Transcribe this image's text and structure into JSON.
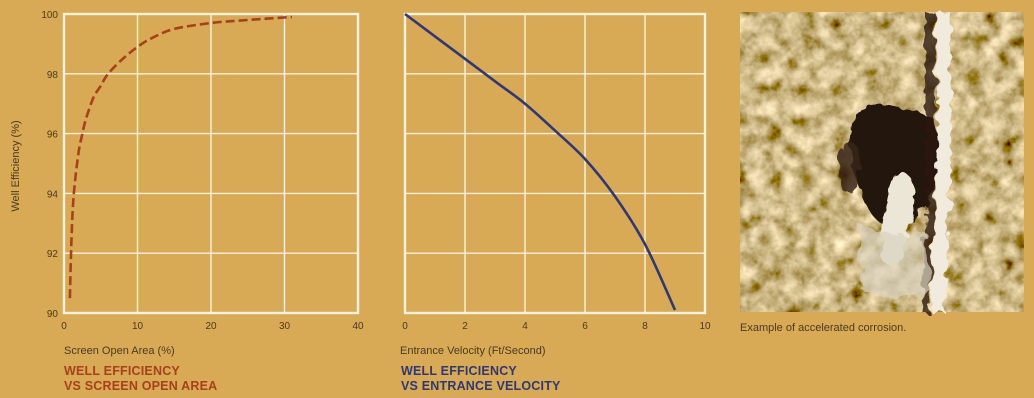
{
  "chart_data": [
    {
      "type": "line",
      "xlabel": "Screen Open Area (%)",
      "ylabel": "Well Efficiency (%)",
      "xlim": [
        0,
        40
      ],
      "ylim": [
        90,
        100
      ],
      "xticks": [
        "0",
        "10",
        "20",
        "30",
        "40"
      ],
      "yticks": [
        "90",
        "92",
        "94",
        "96",
        "98",
        "100"
      ],
      "grid": true,
      "line_style": "dashed",
      "color": "#a8401c",
      "series": [
        {
          "x": [
            0.8,
            0.9,
            1.0,
            1.2,
            1.5,
            2.0,
            2.5,
            3.0,
            4.0,
            5.0,
            6.0,
            8.0,
            10.0,
            12.0,
            15.0,
            20.0,
            25.0,
            31.0
          ],
          "y": [
            90.5,
            91.5,
            92.3,
            93.5,
            94.4,
            95.4,
            96.0,
            96.5,
            97.2,
            97.6,
            98.0,
            98.5,
            98.9,
            99.2,
            99.5,
            99.7,
            99.8,
            99.9
          ]
        }
      ],
      "caption": [
        "WELL EFFICIENCY",
        "VS SCREEN OPEN AREA"
      ]
    },
    {
      "type": "line",
      "xlabel": "Entrance Velocity (Ft/Second)",
      "ylabel": "",
      "xlim": [
        0,
        10
      ],
      "ylim": [
        90,
        100
      ],
      "xticks": [
        "0",
        "2",
        "4",
        "6",
        "8",
        "10"
      ],
      "yticks": [],
      "grid": true,
      "line_style": "solid",
      "color": "#2e3878",
      "series": [
        {
          "x": [
            0,
            1,
            2,
            3,
            4,
            5,
            6,
            7,
            8,
            9
          ],
          "y": [
            100,
            99.25,
            98.5,
            97.75,
            97.0,
            96.1,
            95.15,
            93.9,
            92.3,
            90.1
          ]
        }
      ],
      "caption": [
        "WELL EFFICIENCY",
        "VS ENTRANCE VELOCITY"
      ]
    }
  ],
  "photo": {
    "caption": "Example of accelerated corrosion."
  }
}
